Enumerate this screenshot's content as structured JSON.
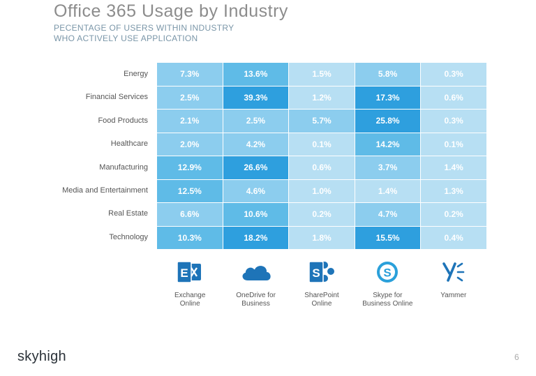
{
  "header": {
    "title": "Office 365 Usage by Industry",
    "subtitle_line1": "PECENTAGE OF USERS WITHIN INDUSTRY",
    "subtitle_line2": "WHO ACTIVELY USE APPLICATION"
  },
  "chart_data": {
    "type": "heatmap",
    "rows": [
      "Energy",
      "Financial Services",
      "Food Products",
      "Healthcare",
      "Manufacturing",
      "Media and Entertainment",
      "Real Estate",
      "Technology"
    ],
    "columns": [
      "Exchange\nOnline",
      "OneDrive for\nBusiness",
      "SharePoint\nOnline",
      "Skype for\nBusiness Online",
      "Yammer"
    ],
    "values": [
      [
        7.3,
        13.6,
        1.5,
        5.8,
        0.3
      ],
      [
        2.5,
        39.3,
        1.2,
        17.3,
        0.6
      ],
      [
        2.1,
        2.5,
        5.7,
        25.8,
        0.3
      ],
      [
        2.0,
        4.2,
        0.1,
        14.2,
        0.1
      ],
      [
        12.9,
        26.6,
        0.6,
        3.7,
        1.4
      ],
      [
        12.5,
        4.6,
        1.0,
        1.4,
        1.3
      ],
      [
        6.6,
        10.6,
        0.2,
        4.7,
        0.2
      ],
      [
        10.3,
        18.2,
        1.8,
        15.5,
        0.4
      ]
    ],
    "value_labels": [
      [
        "7.3%",
        "13.6%",
        "1.5%",
        "5.8%",
        "0.3%"
      ],
      [
        "2.5%",
        "39.3%",
        "1.2%",
        "17.3%",
        "0.6%"
      ],
      [
        "2.1%",
        "2.5%",
        "5.7%",
        "25.8%",
        "0.3%"
      ],
      [
        "2.0%",
        "4.2%",
        "0.1%",
        "14.2%",
        "0.1%"
      ],
      [
        "12.9%",
        "26.6%",
        "0.6%",
        "3.7%",
        "1.4%"
      ],
      [
        "12.5%",
        "4.6%",
        "1.0%",
        "1.4%",
        "1.3%"
      ],
      [
        "6.6%",
        "10.6%",
        "0.2%",
        "4.7%",
        "0.2%"
      ],
      [
        "10.3%",
        "18.2%",
        "1.8%",
        "15.5%",
        "0.4%"
      ]
    ],
    "color_scale": [
      "#b7dff3",
      "#8ccdee",
      "#5fbbe7",
      "#2e9fde"
    ]
  },
  "apps": [
    {
      "icon": "exchange-icon",
      "color": "#1e74b8"
    },
    {
      "icon": "onedrive-icon",
      "color": "#1e74b8"
    },
    {
      "icon": "sharepoint-icon",
      "color": "#1e74b8"
    },
    {
      "icon": "skype-icon",
      "color": "#2aa0da"
    },
    {
      "icon": "yammer-icon",
      "color": "#1e74b8"
    }
  ],
  "footer": {
    "logo": "skyhigh",
    "page_number": "6"
  }
}
